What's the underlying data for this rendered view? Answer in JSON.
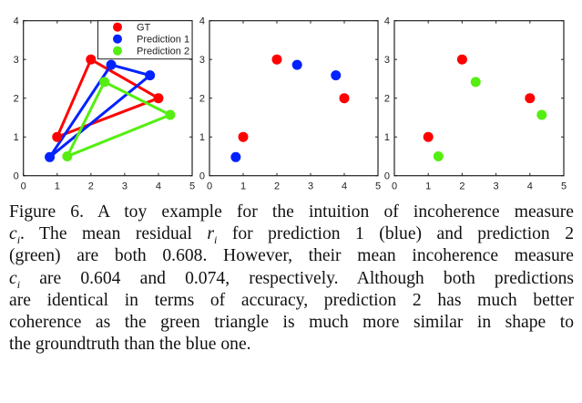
{
  "chart_data": [
    {
      "type": "scatter",
      "title": "",
      "xlabel": "",
      "ylabel": "",
      "xlim": [
        0,
        5
      ],
      "ylim": [
        0,
        4
      ],
      "xticks": [
        "0",
        "1",
        "2",
        "3",
        "4",
        "5"
      ],
      "yticks": [
        "0",
        "1",
        "2",
        "3",
        "4"
      ],
      "legend": {
        "placement": "top-right",
        "entries": [
          "GT",
          "Prediction 1",
          "Prediction 2"
        ]
      },
      "series": [
        {
          "name": "GT",
          "color": "#ff0000",
          "triangle": true,
          "points": [
            [
              1,
              1
            ],
            [
              2,
              3
            ],
            [
              4,
              2
            ]
          ]
        },
        {
          "name": "Prediction 1",
          "color": "#0022ff",
          "triangle": true,
          "points": [
            [
              0.78,
              0.48
            ],
            [
              2.6,
              2.86
            ],
            [
              3.75,
              2.59
            ]
          ]
        },
        {
          "name": "Prediction 2",
          "color": "#55ee11",
          "triangle": true,
          "points": [
            [
              1.3,
              0.5
            ],
            [
              2.4,
              2.42
            ],
            [
              4.35,
              1.57
            ]
          ]
        }
      ]
    },
    {
      "type": "scatter",
      "xlim": [
        0,
        5
      ],
      "ylim": [
        0,
        4
      ],
      "xticks": [
        "0",
        "1",
        "2",
        "3",
        "4",
        "5"
      ],
      "yticks": [
        "0",
        "1",
        "2",
        "3",
        "4"
      ],
      "series": [
        {
          "name": "GT",
          "color": "#ff0000",
          "points": [
            [
              1,
              1
            ],
            [
              2,
              3
            ],
            [
              4,
              2
            ]
          ]
        },
        {
          "name": "Prediction 1",
          "color": "#0022ff",
          "points": [
            [
              0.78,
              0.48
            ],
            [
              2.6,
              2.86
            ],
            [
              3.75,
              2.59
            ]
          ]
        }
      ]
    },
    {
      "type": "scatter",
      "xlim": [
        0,
        5
      ],
      "ylim": [
        0,
        4
      ],
      "xticks": [
        "0",
        "1",
        "2",
        "3",
        "4",
        "5"
      ],
      "yticks": [
        "0",
        "1",
        "2",
        "3",
        "4"
      ],
      "series": [
        {
          "name": "GT",
          "color": "#ff0000",
          "points": [
            [
              1,
              1
            ],
            [
              2,
              3
            ],
            [
              4,
              2
            ]
          ]
        },
        {
          "name": "Prediction 2",
          "color": "#55ee11",
          "points": [
            [
              1.3,
              0.5
            ],
            [
              2.4,
              2.42
            ],
            [
              4.35,
              1.57
            ]
          ]
        }
      ]
    }
  ],
  "caption": {
    "l1": "Figure 6. A toy example for the intuition of incoherence measure",
    "c": "c",
    "i": "i",
    "r": "r",
    "l2a": ". The mean residual ",
    "l2b": " for prediction 1 (blue) and prediction 2",
    "l3": "(green) are both 0.608. However, their mean incoherence measure",
    "l4": " are 0.604 and 0.074, respectively.  Although both predictions",
    "l5": "are identical in terms of accuracy, prediction 2 has much better",
    "l6": "coherence as the green triangle is much more similar in shape to",
    "l7": "the groundtruth than the blue one."
  }
}
